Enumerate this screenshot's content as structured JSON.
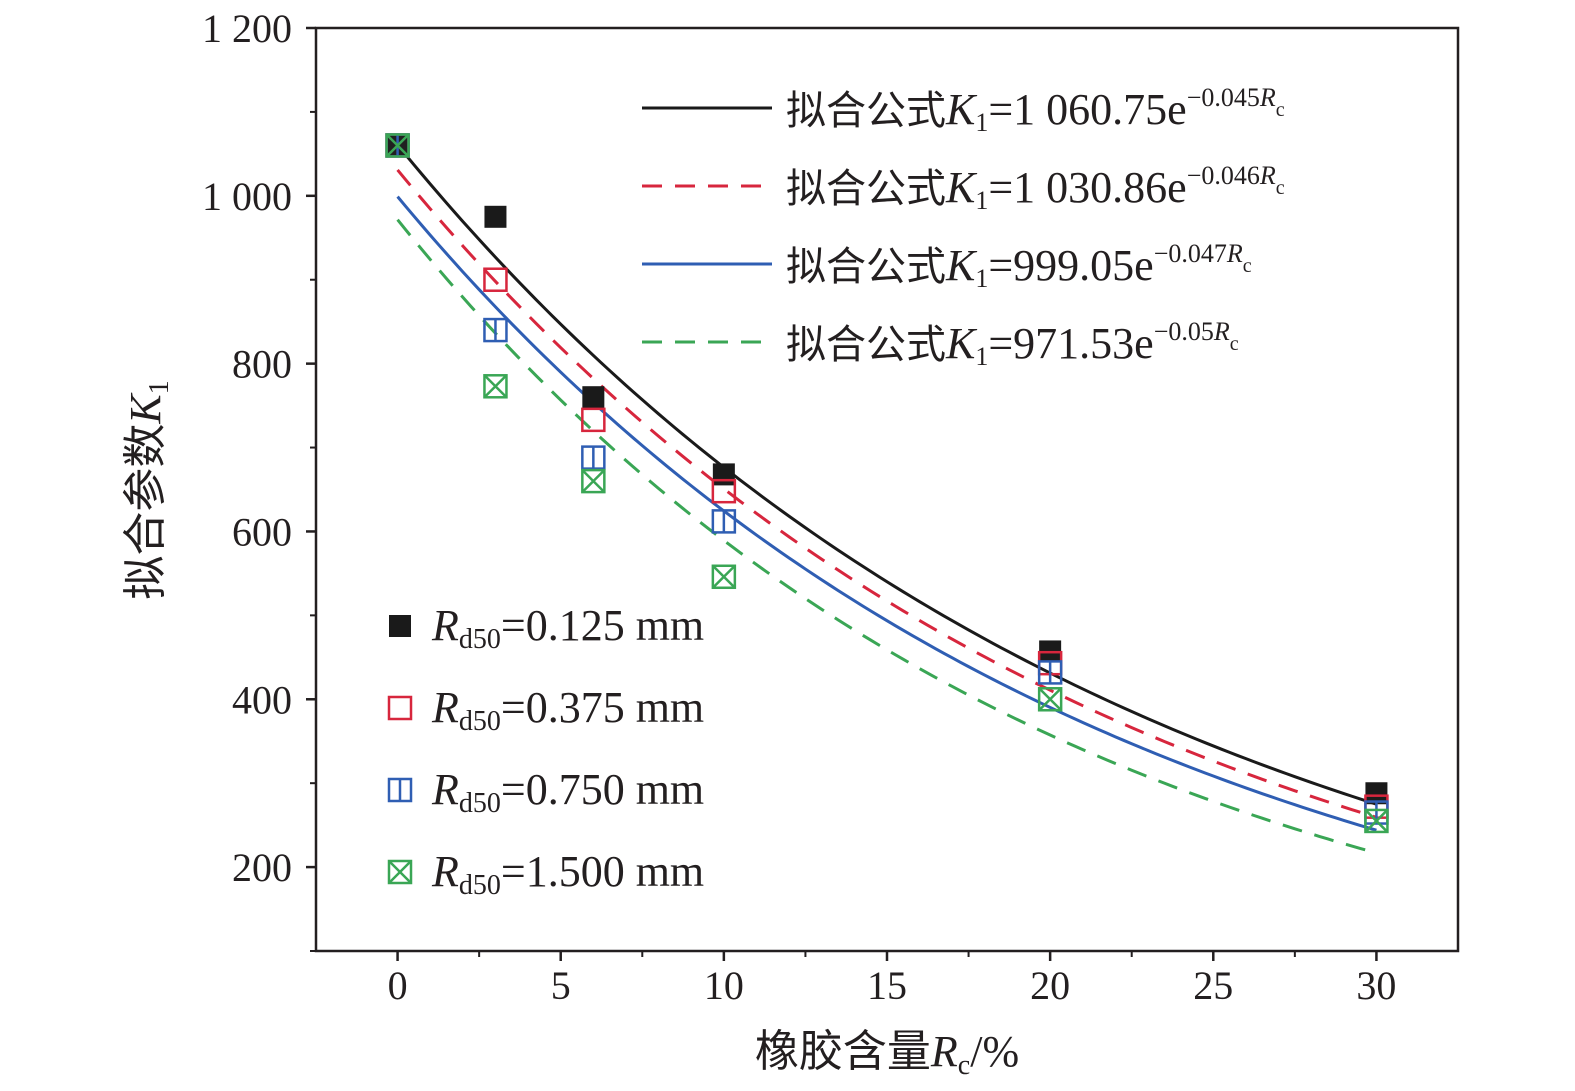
{
  "chart_data": {
    "type": "scatter",
    "xlabel": "橡胶含量Rc/%",
    "xlabel_parts": {
      "main": "橡胶含量",
      "var": "R",
      "sub": "c",
      "tail": "/%"
    },
    "ylabel": "拟合参数K1",
    "ylabel_parts": {
      "main": "拟合参数",
      "var": "K",
      "sub": "1"
    },
    "xlim": [
      -2.5,
      32.5
    ],
    "ylim": [
      100,
      1200
    ],
    "x_ticks": [
      0,
      5,
      10,
      15,
      20,
      25,
      30
    ],
    "y_ticks": [
      200,
      400,
      600,
      800,
      1000,
      1200
    ],
    "y_tick_labels": [
      "200",
      "400",
      "600",
      "800",
      "1 000",
      "1 200"
    ],
    "grid": false,
    "series": [
      {
        "name": "Rd50=0.125 mm",
        "label_var": "R",
        "label_sub": "d50",
        "label_value": "=0.125 mm",
        "marker": "filled-square",
        "color": "#1a1a1a",
        "x": [
          0,
          3,
          6,
          10,
          20,
          30
        ],
        "y": [
          1060,
          975,
          760,
          668,
          457,
          288
        ]
      },
      {
        "name": "Rd50=0.375 mm",
        "label_var": "R",
        "label_sub": "d50",
        "label_value": "=0.375 mm",
        "marker": "open-square",
        "color": "#d7263d",
        "x": [
          0,
          3,
          6,
          10,
          20,
          30
        ],
        "y": [
          1060,
          900,
          733,
          648,
          443,
          272
        ]
      },
      {
        "name": "Rd50=0.750 mm",
        "label_var": "R",
        "label_sub": "d50",
        "label_value": "=0.750 mm",
        "marker": "open-square-bar",
        "color": "#2f5eb3",
        "x": [
          0,
          3,
          6,
          10,
          20,
          30
        ],
        "y": [
          1060,
          840,
          688,
          612,
          432,
          265
        ]
      },
      {
        "name": "Rd50=1.500 mm",
        "label_var": "R",
        "label_sub": "d50",
        "label_value": "=1.500 mm",
        "marker": "crossed-square",
        "color": "#3aa655",
        "x": [
          0,
          3,
          6,
          10,
          20,
          30
        ],
        "y": [
          1060,
          773,
          660,
          546,
          400,
          255
        ]
      }
    ],
    "fits": [
      {
        "label_pre": "拟合公式",
        "label_var": "K",
        "label_sub": "1",
        "label_eq": "=1 060.75e",
        "label_exp": "−0.045",
        "label_exp_var": "R",
        "label_exp_sub": "c",
        "a": 1060.75,
        "b": 0.045,
        "color": "#1a1a1a",
        "dash": "solid"
      },
      {
        "label_pre": "拟合公式",
        "label_var": "K",
        "label_sub": "1",
        "label_eq": "=1 030.86e",
        "label_exp": "−0.046",
        "label_exp_var": "R",
        "label_exp_sub": "c",
        "a": 1030.86,
        "b": 0.046,
        "color": "#d7263d",
        "dash": "dashed"
      },
      {
        "label_pre": "拟合公式",
        "label_var": "K",
        "label_sub": "1",
        "label_eq": "=999.05e",
        "label_exp": "−0.047",
        "label_exp_var": "R",
        "label_exp_sub": "c",
        "a": 999.05,
        "b": 0.047,
        "color": "#2f5eb3",
        "dash": "solid"
      },
      {
        "label_pre": "拟合公式",
        "label_var": "K",
        "label_sub": "1",
        "label_eq": "=971.53e",
        "label_exp": "−0.05",
        "label_exp_var": "R",
        "label_exp_sub": "c",
        "a": 971.53,
        "b": 0.05,
        "color": "#3aa655",
        "dash": "dashed"
      }
    ],
    "legend_fits_placement": "top-right",
    "legend_markers_placement": "bottom-left"
  }
}
